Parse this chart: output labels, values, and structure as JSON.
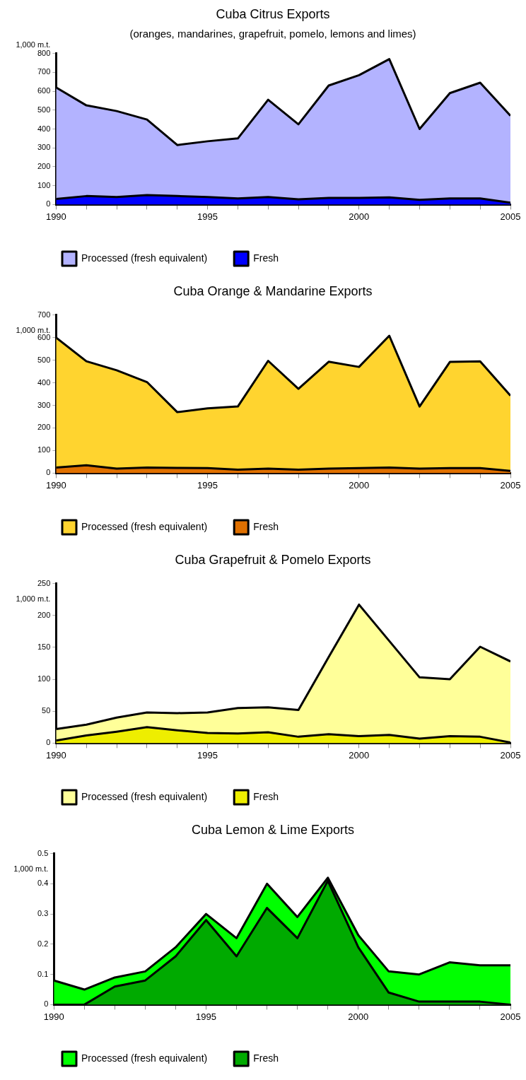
{
  "chart_data": [
    {
      "type": "area",
      "title": "Cuba Citrus Exports",
      "subtitle": "(oranges, mandarines, grapefruit, pomelo, lemons and limes)",
      "ylabel": "1,000 m.t.",
      "stacked": true,
      "legend": "bottom",
      "marker": "none",
      "line_style": "solid",
      "x": [
        1990,
        1991,
        1992,
        1993,
        1994,
        1995,
        1996,
        1997,
        1998,
        1999,
        2000,
        2001,
        2002,
        2003,
        2004,
        2005
      ],
      "xlim": [
        1990,
        2005
      ],
      "xticks": [
        1990,
        {
          "value": 1991,
          "label": null
        },
        {
          "value": 1992,
          "label": null
        },
        {
          "value": 1993,
          "label": null
        },
        {
          "value": 1994,
          "label": null
        },
        1995,
        {
          "value": 1996,
          "label": null
        },
        {
          "value": 1997,
          "label": null
        },
        {
          "value": 1998,
          "label": null
        },
        {
          "value": 1999,
          "label": null
        },
        2000,
        {
          "value": 2001,
          "label": null
        },
        {
          "value": 2002,
          "label": null
        },
        {
          "value": 2003,
          "label": null
        },
        {
          "value": 2004,
          "label": null
        },
        2005
      ],
      "ylim": [
        0,
        800
      ],
      "yticks": [
        0,
        100,
        200,
        300,
        400,
        500,
        600,
        700,
        800
      ],
      "series": [
        {
          "name": "Fresh",
          "color": "#0000ff",
          "values": [
            30,
            45,
            40,
            50,
            45,
            40,
            32,
            40,
            28,
            35,
            35,
            38,
            25,
            32,
            32,
            10
          ]
        },
        {
          "name": "Processed (fresh equivalent)",
          "color": "#b3b3ff",
          "values": [
            590,
            480,
            455,
            400,
            270,
            295,
            318,
            515,
            397,
            595,
            650,
            732,
            375,
            558,
            613,
            460
          ]
        }
      ]
    },
    {
      "type": "area",
      "title": "Cuba Orange & Mandarine Exports",
      "ylabel": "1,000 m.t.",
      "stacked": true,
      "legend": "bottom",
      "marker": "none",
      "line_style": "solid",
      "x": [
        1990,
        1991,
        1992,
        1993,
        1994,
        1995,
        1996,
        1997,
        1998,
        1999,
        2000,
        2001,
        2002,
        2003,
        2004,
        2005
      ],
      "xlim": [
        1990,
        2005
      ],
      "xticks": [
        1990,
        {
          "value": 1991,
          "label": null
        },
        {
          "value": 1992,
          "label": null
        },
        {
          "value": 1993,
          "label": null
        },
        {
          "value": 1994,
          "label": null
        },
        1995,
        {
          "value": 1996,
          "label": null
        },
        {
          "value": 1997,
          "label": null
        },
        {
          "value": 1998,
          "label": null
        },
        {
          "value": 1999,
          "label": null
        },
        2000,
        {
          "value": 2001,
          "label": null
        },
        {
          "value": 2002,
          "label": null
        },
        {
          "value": 2003,
          "label": null
        },
        {
          "value": 2004,
          "label": null
        },
        2005
      ],
      "ylim": [
        0,
        700
      ],
      "yticks": [
        0,
        100,
        200,
        300,
        400,
        500,
        600,
        700
      ],
      "series": [
        {
          "name": "Fresh",
          "color": "#e07000",
          "values": [
            25,
            35,
            20,
            25,
            23,
            22,
            15,
            20,
            15,
            20,
            22,
            25,
            20,
            22,
            22,
            10
          ]
        },
        {
          "name": "Processed (fresh equivalent)",
          "color": "#ffd42f",
          "values": [
            575,
            460,
            435,
            378,
            247,
            265,
            280,
            477,
            358,
            473,
            448,
            583,
            275,
            470,
            473,
            333
          ]
        }
      ]
    },
    {
      "type": "area",
      "title": "Cuba Grapefruit & Pomelo Exports",
      "ylabel": "1,000 m.t.",
      "stacked": true,
      "legend": "bottom",
      "marker": "none",
      "line_style": "solid",
      "x": [
        1990,
        1991,
        1992,
        1993,
        1994,
        1995,
        1996,
        1997,
        1998,
        1999,
        2000,
        2001,
        2002,
        2003,
        2004,
        2005
      ],
      "xlim": [
        1990,
        2005
      ],
      "xticks": [
        1990,
        {
          "value": 1991,
          "label": null
        },
        {
          "value": 1992,
          "label": null
        },
        {
          "value": 1993,
          "label": null
        },
        {
          "value": 1994,
          "label": null
        },
        1995,
        {
          "value": 1996,
          "label": null
        },
        {
          "value": 1997,
          "label": null
        },
        {
          "value": 1998,
          "label": null
        },
        {
          "value": 1999,
          "label": null
        },
        2000,
        {
          "value": 2001,
          "label": null
        },
        {
          "value": 2002,
          "label": null
        },
        {
          "value": 2003,
          "label": null
        },
        {
          "value": 2004,
          "label": null
        },
        2005
      ],
      "ylim": [
        0,
        250
      ],
      "yticks": [
        0,
        50,
        100,
        150,
        200,
        250
      ],
      "series": [
        {
          "name": "Fresh",
          "color": "#eeee00",
          "values": [
            4,
            12,
            18,
            25,
            20,
            16,
            15,
            17,
            10,
            14,
            11,
            13,
            7,
            11,
            10,
            1
          ]
        },
        {
          "name": "Processed (fresh equivalent)",
          "color": "#ffff99",
          "values": [
            18,
            17,
            22,
            23,
            27,
            32,
            40,
            39,
            42,
            121,
            206,
            147,
            96,
            89,
            141,
            127
          ]
        }
      ]
    },
    {
      "type": "area",
      "title": "Cuba Lemon & Lime Exports",
      "ylabel": "1,000 m.t.",
      "stacked": true,
      "legend": "bottom",
      "marker": "none",
      "line_style": "solid",
      "x": [
        1990,
        1991,
        1992,
        1993,
        1994,
        1995,
        1996,
        1997,
        1998,
        1999,
        2000,
        2001,
        2002,
        2003,
        2004,
        2005
      ],
      "xlim": [
        1990,
        2005
      ],
      "xticks": [
        1990,
        {
          "value": 1991,
          "label": null
        },
        {
          "value": 1992,
          "label": null
        },
        {
          "value": 1993,
          "label": null
        },
        {
          "value": 1994,
          "label": null
        },
        1995,
        {
          "value": 1996,
          "label": null
        },
        {
          "value": 1997,
          "label": null
        },
        {
          "value": 1998,
          "label": null
        },
        {
          "value": 1999,
          "label": null
        },
        2000,
        {
          "value": 2001,
          "label": null
        },
        {
          "value": 2002,
          "label": null
        },
        {
          "value": 2003,
          "label": null
        },
        {
          "value": 2004,
          "label": null
        },
        2005
      ],
      "ylim": [
        0,
        0.5
      ],
      "yticks": [
        0,
        0.1,
        0.2,
        0.3,
        0.4,
        0.5
      ],
      "series": [
        {
          "name": "Fresh",
          "color": "#00aa00",
          "values": [
            0,
            0,
            0.06,
            0.08,
            0.16,
            0.28,
            0.16,
            0.32,
            0.22,
            0.41,
            0.19,
            0.04,
            0.01,
            0.01,
            0.01,
            0
          ]
        },
        {
          "name": "Processed (fresh equivalent)",
          "color": "#00ff00",
          "values": [
            0.08,
            0.05,
            0.03,
            0.03,
            0.03,
            0.02,
            0.06,
            0.08,
            0.07,
            0.01,
            0.04,
            0.07,
            0.09,
            0.13,
            0.12,
            0.13
          ]
        }
      ]
    }
  ]
}
